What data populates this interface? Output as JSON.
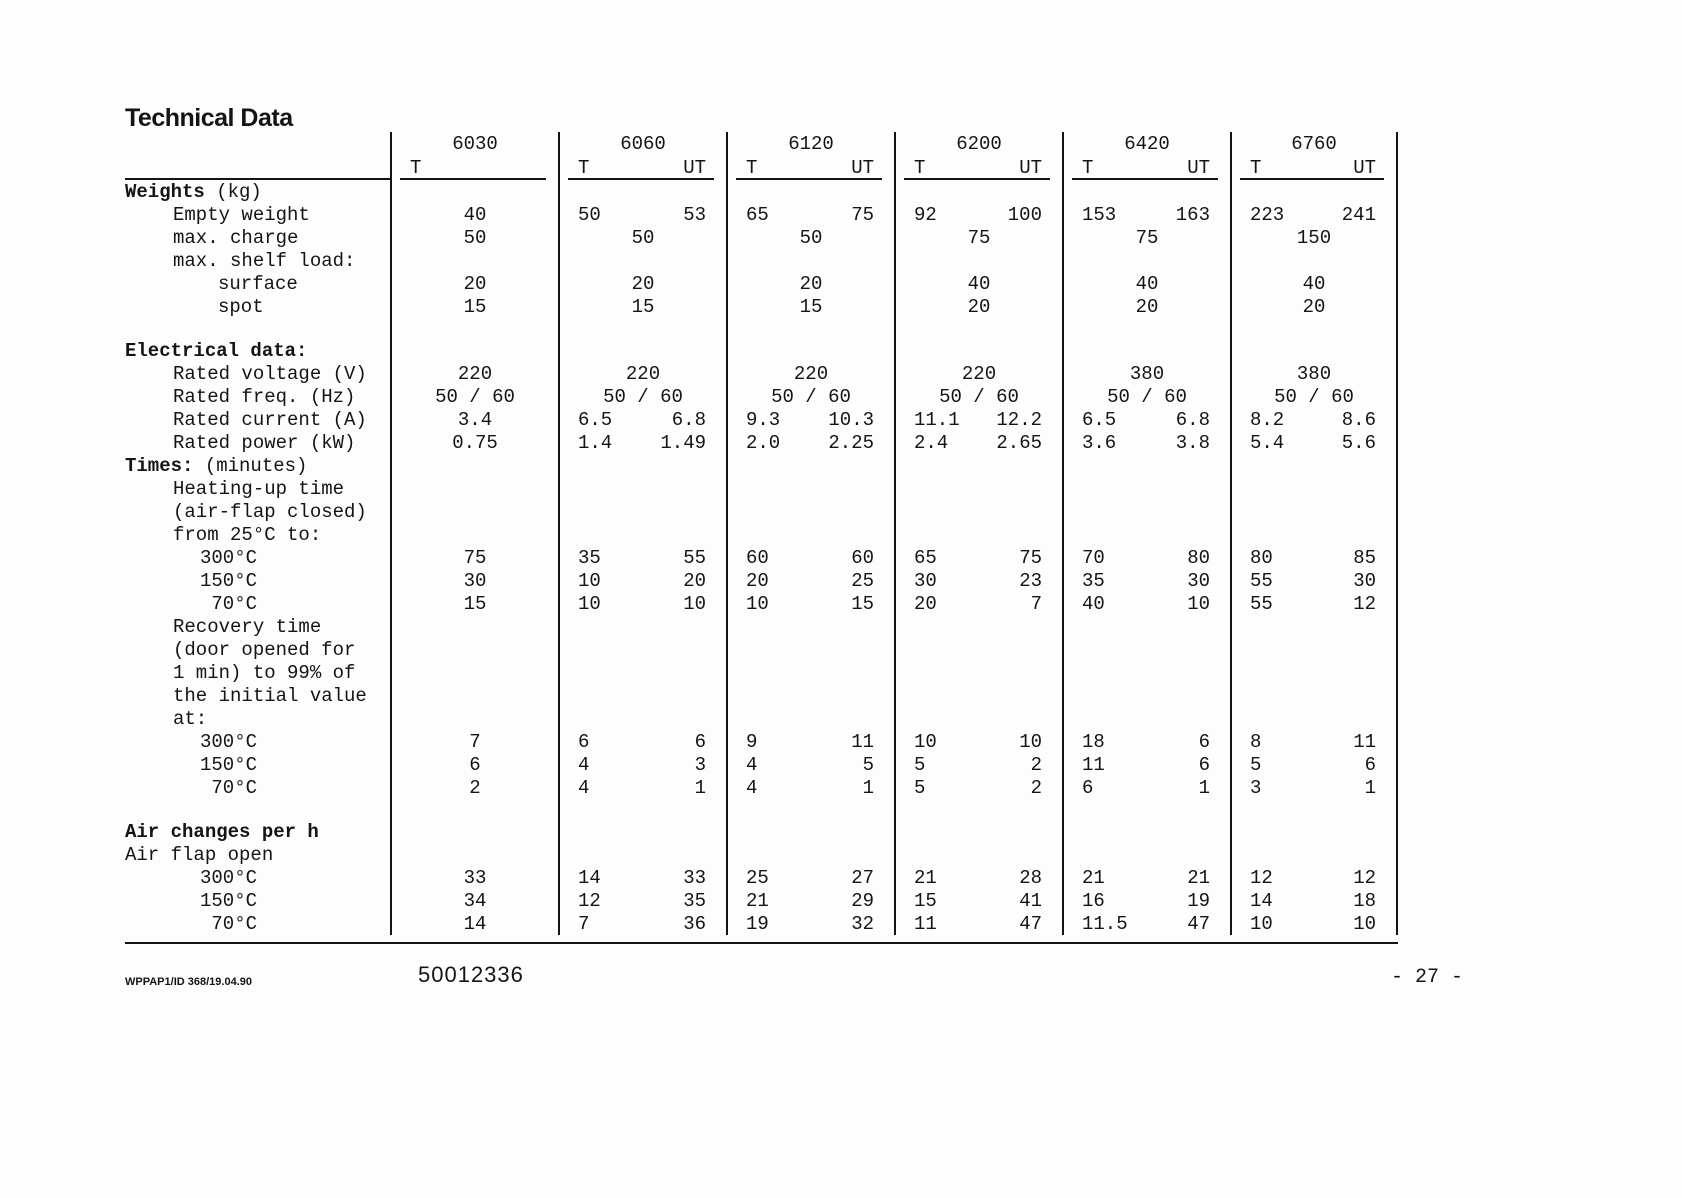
{
  "title": "Technical Data",
  "footer": {
    "doc_code": "WPPAP1/ID 368/19.04.90",
    "part_number": "50012336",
    "page_number": "- 27 -"
  },
  "table": {
    "models": [
      {
        "name": "6030",
        "cols": [
          "T",
          ""
        ]
      },
      {
        "name": "6060",
        "cols": [
          "T",
          "UT"
        ]
      },
      {
        "name": "6120",
        "cols": [
          "T",
          "UT"
        ]
      },
      {
        "name": "6200",
        "cols": [
          "T",
          "UT"
        ]
      },
      {
        "name": "6420",
        "cols": [
          "T",
          "UT"
        ]
      },
      {
        "name": "6760",
        "cols": [
          "T",
          "UT"
        ]
      }
    ],
    "rows": [
      {
        "label": "Weights",
        "label2": " (kg)",
        "bold": true,
        "indent": 0,
        "cells": []
      },
      {
        "label": "Empty weight",
        "indent": 1,
        "cells": [
          [
            "40"
          ],
          [
            "50",
            "53"
          ],
          [
            "65",
            "75"
          ],
          [
            "92",
            "100"
          ],
          [
            "153",
            "163"
          ],
          [
            "223",
            "241"
          ]
        ]
      },
      {
        "label": "max. charge",
        "indent": 1,
        "cells": [
          [
            "50"
          ],
          [
            "50"
          ],
          [
            "50"
          ],
          [
            "75"
          ],
          [
            "75"
          ],
          [
            "150"
          ]
        ]
      },
      {
        "label": "max. shelf load:",
        "indent": 1,
        "cells": []
      },
      {
        "label": "surface",
        "indent": 2,
        "cells": [
          [
            "20"
          ],
          [
            "20"
          ],
          [
            "20"
          ],
          [
            "40"
          ],
          [
            "40"
          ],
          [
            "40"
          ]
        ]
      },
      {
        "label": "spot",
        "indent": 2,
        "cells": [
          [
            "15"
          ],
          [
            "15"
          ],
          [
            "15"
          ],
          [
            "20"
          ],
          [
            "20"
          ],
          [
            "20"
          ]
        ]
      },
      {
        "spacer": true
      },
      {
        "label": "Electrical data:",
        "label2": "",
        "bold": true,
        "indent": 0,
        "cells": []
      },
      {
        "label": "Rated voltage (V)",
        "indent": 1,
        "cells": [
          [
            "220"
          ],
          [
            "220"
          ],
          [
            "220"
          ],
          [
            "220"
          ],
          [
            "380"
          ],
          [
            "380"
          ]
        ]
      },
      {
        "label": "Rated freq. (Hz)",
        "indent": 1,
        "cells": [
          [
            "50 / 60"
          ],
          [
            "50 / 60"
          ],
          [
            "50 / 60"
          ],
          [
            "50 / 60"
          ],
          [
            "50 / 60"
          ],
          [
            "50 / 60"
          ]
        ]
      },
      {
        "label": "Rated current (A)",
        "indent": 1,
        "cells": [
          [
            "3.4"
          ],
          [
            "6.5",
            "6.8"
          ],
          [
            "9.3",
            "10.3"
          ],
          [
            "11.1",
            "12.2"
          ],
          [
            "6.5",
            "6.8"
          ],
          [
            "8.2",
            "8.6"
          ]
        ]
      },
      {
        "label": "Rated power (kW)",
        "indent": 1,
        "cells": [
          [
            "0.75"
          ],
          [
            "1.4",
            "1.49"
          ],
          [
            "2.0",
            "2.25"
          ],
          [
            "2.4",
            "2.65"
          ],
          [
            "3.6",
            "3.8"
          ],
          [
            "5.4",
            "5.6"
          ]
        ]
      },
      {
        "label": "Times:",
        "label2": " (minutes)",
        "bold": true,
        "indent": 0,
        "cells": []
      },
      {
        "label": "Heating-up time",
        "indent": 1,
        "cells": []
      },
      {
        "label": "(air-flap closed)",
        "indent": 1,
        "cells": []
      },
      {
        "label": "from 25°C to:",
        "indent": 1,
        "cells": []
      },
      {
        "label": "300°C",
        "align": "right",
        "cells": [
          [
            "75"
          ],
          [
            "35",
            "55"
          ],
          [
            "60",
            "60"
          ],
          [
            "65",
            "75"
          ],
          [
            "70",
            "80"
          ],
          [
            "80",
            "85"
          ]
        ]
      },
      {
        "label": "150°C",
        "align": "right",
        "cells": [
          [
            "30"
          ],
          [
            "10",
            "20"
          ],
          [
            "20",
            "25"
          ],
          [
            "30",
            "23"
          ],
          [
            "35",
            "30"
          ],
          [
            "55",
            "30"
          ]
        ]
      },
      {
        "label": "70°C",
        "align": "right",
        "cells": [
          [
            "15"
          ],
          [
            "10",
            "10"
          ],
          [
            "10",
            "15"
          ],
          [
            "20",
            "7"
          ],
          [
            "40",
            "10"
          ],
          [
            "55",
            "12"
          ]
        ]
      },
      {
        "label": "Recovery time",
        "indent": 1,
        "cells": []
      },
      {
        "label": "(door opened for",
        "indent": 1,
        "cells": []
      },
      {
        "label": "1 min) to 99% of",
        "indent": 1,
        "cells": []
      },
      {
        "label": "the initial value",
        "indent": 1,
        "cells": []
      },
      {
        "label": "at:",
        "indent": 1,
        "cells": []
      },
      {
        "label": "300°C",
        "align": "right",
        "cells": [
          [
            "7"
          ],
          [
            "6",
            "6"
          ],
          [
            "9",
            "11"
          ],
          [
            "10",
            "10"
          ],
          [
            "18",
            "6"
          ],
          [
            "8",
            "11"
          ]
        ]
      },
      {
        "label": "150°C",
        "align": "right",
        "cells": [
          [
            "6"
          ],
          [
            "4",
            "3"
          ],
          [
            "4",
            "5"
          ],
          [
            "5",
            "2"
          ],
          [
            "11",
            "6"
          ],
          [
            "5",
            "6"
          ]
        ]
      },
      {
        "label": "70°C",
        "align": "right",
        "cells": [
          [
            "2"
          ],
          [
            "4",
            "1"
          ],
          [
            "4",
            "1"
          ],
          [
            "5",
            "2"
          ],
          [
            "6",
            "1"
          ],
          [
            "3",
            "1"
          ]
        ]
      },
      {
        "spacer": true
      },
      {
        "label": "Air changes per h",
        "label2": "",
        "bold": true,
        "indent": 0,
        "cells": []
      },
      {
        "label": "Air flap open",
        "indent": 0,
        "cells": []
      },
      {
        "label": "300°C",
        "align": "right",
        "cells": [
          [
            "33"
          ],
          [
            "14",
            "33"
          ],
          [
            "25",
            "27"
          ],
          [
            "21",
            "28"
          ],
          [
            "21",
            "21"
          ],
          [
            "12",
            "12"
          ]
        ]
      },
      {
        "label": "150°C",
        "align": "right",
        "cells": [
          [
            "34"
          ],
          [
            "12",
            "35"
          ],
          [
            "21",
            "29"
          ],
          [
            "15",
            "41"
          ],
          [
            "16",
            "19"
          ],
          [
            "14",
            "18"
          ]
        ]
      },
      {
        "label": "70°C",
        "align": "right",
        "cells": [
          [
            "14"
          ],
          [
            "7",
            "36"
          ],
          [
            "19",
            "32"
          ],
          [
            "11",
            "47"
          ],
          [
            "11.5",
            "47"
          ],
          [
            "10",
            "10"
          ]
        ]
      }
    ]
  }
}
